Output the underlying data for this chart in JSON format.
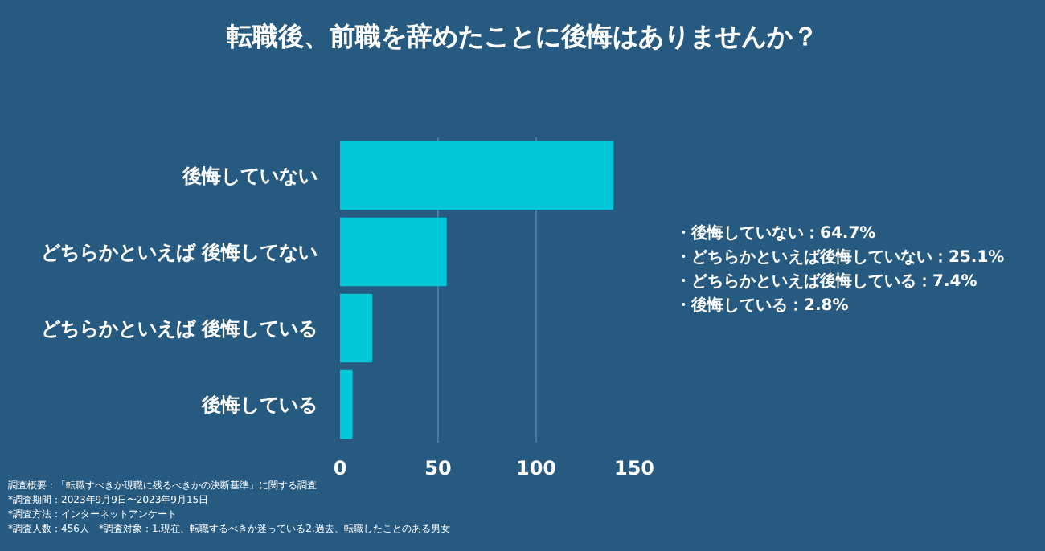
{
  "chart_data": {
    "type": "bar",
    "orientation": "horizontal",
    "title": "転職後、前職を辞めたことに後悔はありませんか？",
    "categories": [
      "後悔していない",
      "どちらかといえば 後悔してない",
      "どちらかといえば 後悔している",
      "後悔している"
    ],
    "values": [
      139,
      54,
      16,
      6
    ],
    "color": "#00c8d8",
    "xlim": [
      0,
      150
    ],
    "xticks": [
      0,
      50,
      100,
      150
    ],
    "grid": "x",
    "annotations": [
      "・後悔していない：64.7%",
      "・どちらかといえば後悔していない：25.1%",
      "・どちらかといえば後悔している：7.4%",
      "・後悔している：2.8%",
      "調査概要：「転職すべきか現職に残るべきかの決断基準」に関する調査",
      "*調査期間：2023年9月9日〜2023年9月15日",
      "*調査方法：インターネットアンケート",
      "*調査人数：456人　*調査対象：1.現在、転職するべきか迷っている2.過去、転職したことのある男女"
    ]
  }
}
